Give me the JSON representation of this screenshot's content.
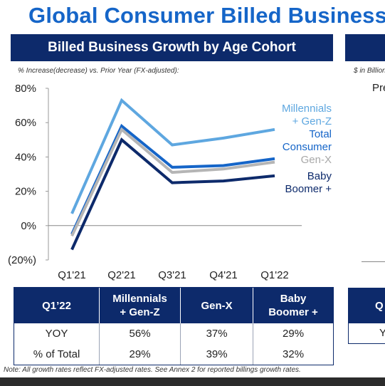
{
  "page": {
    "title": "Global Consumer Billed Business",
    "left_panel_title": "Billed Business Growth by Age Cohort",
    "left_subnote": "% Increase(decrease)  vs. Prior Year (FX-adjusted):",
    "right_subnote": "$ in Billions",
    "right_partial_text": "Pre",
    "right_table_head": "Q",
    "right_table_cell": "Y",
    "footnote": "Note: All growth rates reflect FX-adjusted rates. See Annex 2 for reported billings growth rates."
  },
  "chart_data": {
    "type": "line",
    "title": "Billed Business Growth by Age Cohort",
    "categories": [
      "Q1'21",
      "Q2'21",
      "Q3'21",
      "Q4'21",
      "Q1'22"
    ],
    "yticks": [
      "80%",
      "60%",
      "40%",
      "20%",
      "0%",
      "(20%)"
    ],
    "ylim": [
      -20,
      80
    ],
    "series": [
      {
        "name": "Millennials + Gen-Z",
        "label_lines": [
          "Millennials",
          "+ Gen-Z"
        ],
        "color": "#5ea7e0",
        "values": [
          7,
          73,
          47,
          51,
          56
        ]
      },
      {
        "name": "Total Consumer",
        "label_lines": [
          "Total",
          "Consumer"
        ],
        "color": "#1565c8",
        "values": [
          -5,
          58,
          34,
          35,
          39
        ]
      },
      {
        "name": "Gen-X",
        "label_lines": [
          "Gen-X"
        ],
        "color": "#b5b5b5",
        "values": [
          -6,
          56,
          31,
          33,
          37
        ]
      },
      {
        "name": "Baby Boomer +",
        "label_lines": [
          "Baby",
          "Boomer +"
        ],
        "color": "#0d2a6b",
        "values": [
          -14,
          50,
          25,
          26,
          29
        ]
      }
    ],
    "grid": false,
    "legend": "right"
  },
  "table": {
    "headers": [
      {
        "lines": [
          "Q1’22"
        ]
      },
      {
        "lines": [
          "Millennials",
          "+ Gen-Z"
        ]
      },
      {
        "lines": [
          "Gen-X"
        ]
      },
      {
        "lines": [
          "Baby",
          "Boomer +"
        ]
      }
    ],
    "rows": [
      [
        "YOY",
        "56%",
        "37%",
        "29%"
      ],
      [
        "% of Total",
        "29%",
        "39%",
        "32%"
      ]
    ]
  }
}
